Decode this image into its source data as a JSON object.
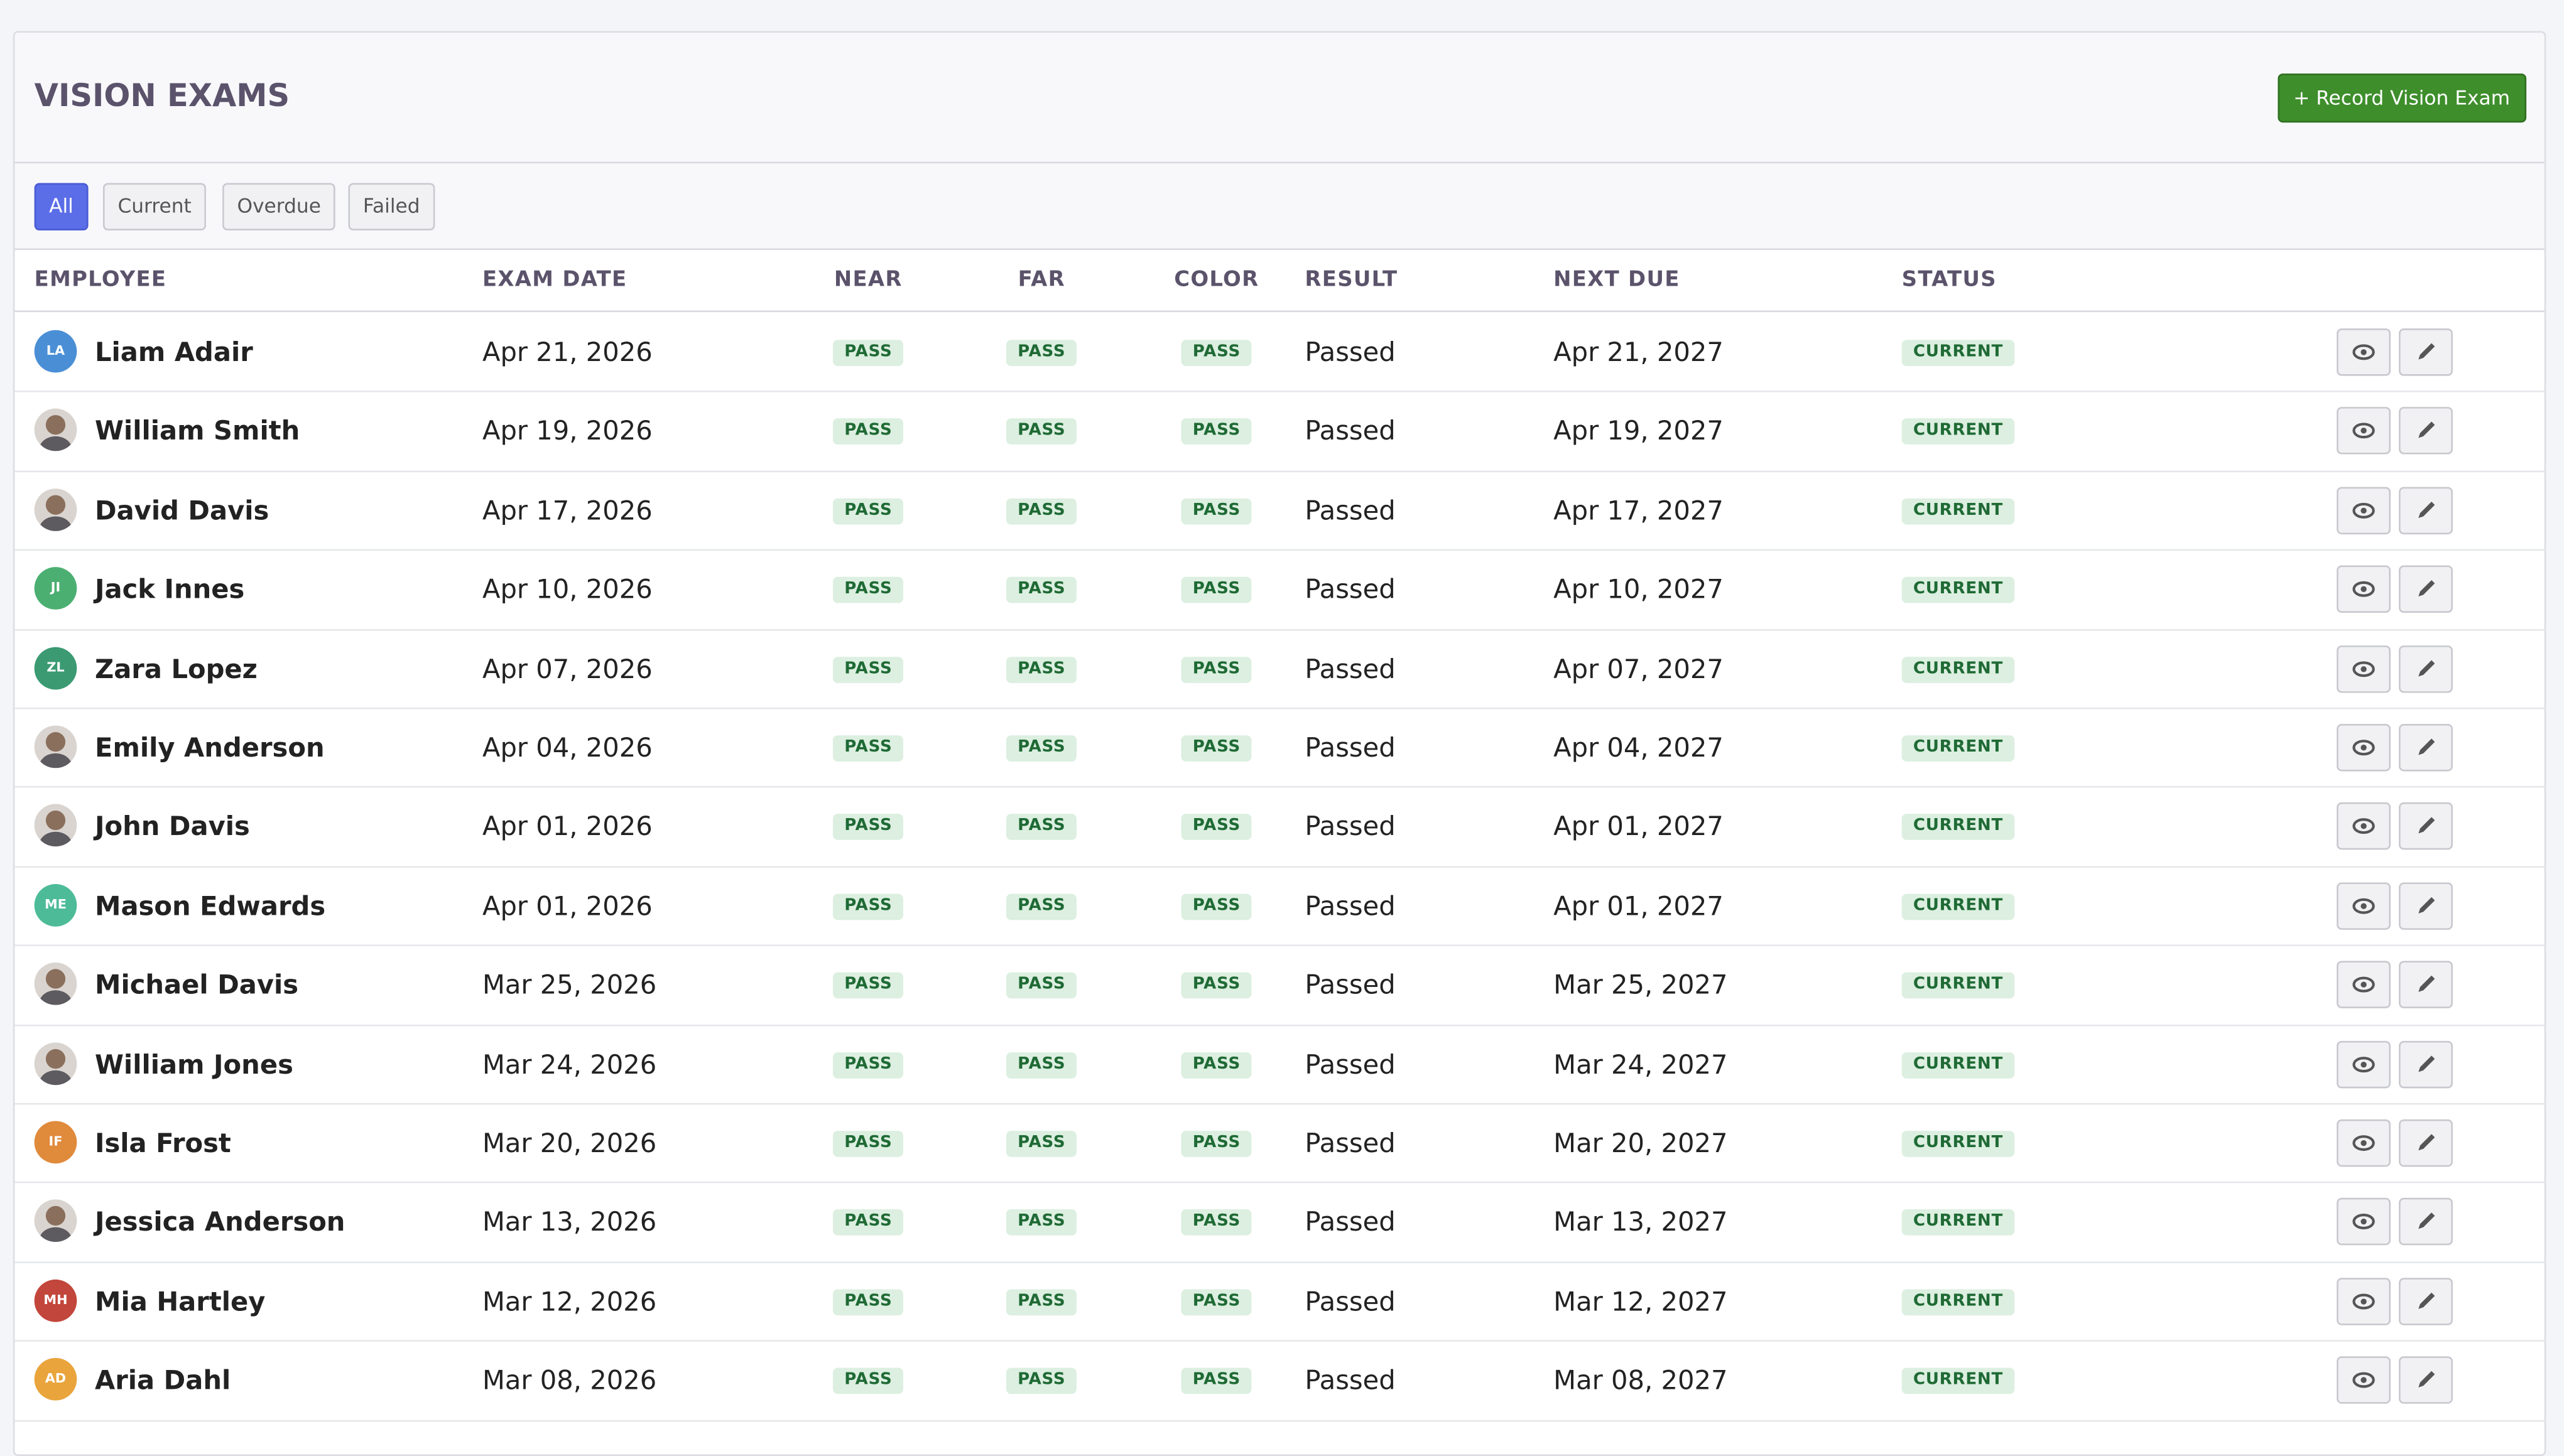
{
  "header": {
    "title": "VISION EXAMS",
    "button": "+ Record Vision Exam"
  },
  "filters": [
    {
      "label": "All",
      "active": true
    },
    {
      "label": "Current"
    },
    {
      "label": "Overdue"
    },
    {
      "label": "Failed"
    }
  ],
  "table": {
    "columns": [
      "EMPLOYEE",
      "EXAM DATE",
      "NEAR",
      "FAR",
      "COLOR",
      "RESULT",
      "NEXT DUE",
      "STATUS"
    ],
    "rows": [
      {
        "employee": "Liam Adair",
        "initials": "LA",
        "color": "#4a8fd6",
        "exam_date": "Apr 21, 2026",
        "near": "PASS",
        "far": "PASS",
        "color_test": "PASS",
        "result": "Passed",
        "next_due": "Apr 21, 2027",
        "status": "CURRENT"
      },
      {
        "employee": "William Smith",
        "exam_date": "Apr 19, 2026",
        "near": "PASS",
        "far": "PASS",
        "color_test": "PASS",
        "result": "Passed",
        "next_due": "Apr 19, 2027",
        "status": "CURRENT"
      },
      {
        "employee": "David Davis",
        "exam_date": "Apr 17, 2026",
        "near": "PASS",
        "far": "PASS",
        "color_test": "PASS",
        "result": "Passed",
        "next_due": "Apr 17, 2027",
        "status": "CURRENT"
      },
      {
        "employee": "Jack Innes",
        "initials": "JI",
        "color": "#4caf72",
        "exam_date": "Apr 10, 2026",
        "near": "PASS",
        "far": "PASS",
        "color_test": "PASS",
        "result": "Passed",
        "next_due": "Apr 10, 2027",
        "status": "CURRENT"
      },
      {
        "employee": "Zara Lopez",
        "initials": "ZL",
        "color": "#3b9a72",
        "exam_date": "Apr 07, 2026",
        "near": "PASS",
        "far": "PASS",
        "color_test": "PASS",
        "result": "Passed",
        "next_due": "Apr 07, 2027",
        "status": "CURRENT"
      },
      {
        "employee": "Emily Anderson",
        "exam_date": "Apr 04, 2026",
        "near": "PASS",
        "far": "PASS",
        "color_test": "PASS",
        "result": "Passed",
        "next_due": "Apr 04, 2027",
        "status": "CURRENT"
      },
      {
        "employee": "John Davis",
        "exam_date": "Apr 01, 2026",
        "near": "PASS",
        "far": "PASS",
        "color_test": "PASS",
        "result": "Passed",
        "next_due": "Apr 01, 2027",
        "status": "CURRENT"
      },
      {
        "employee": "Mason Edwards",
        "initials": "ME",
        "color": "#4dbb98",
        "exam_date": "Apr 01, 2026",
        "near": "PASS",
        "far": "PASS",
        "color_test": "PASS",
        "result": "Passed",
        "next_due": "Apr 01, 2027",
        "status": "CURRENT"
      },
      {
        "employee": "Michael Davis",
        "exam_date": "Mar 25, 2026",
        "near": "PASS",
        "far": "PASS",
        "color_test": "PASS",
        "result": "Passed",
        "next_due": "Mar 25, 2027",
        "status": "CURRENT"
      },
      {
        "employee": "William Jones",
        "exam_date": "Mar 24, 2026",
        "near": "PASS",
        "far": "PASS",
        "color_test": "PASS",
        "result": "Passed",
        "next_due": "Mar 24, 2027",
        "status": "CURRENT"
      },
      {
        "employee": "Isla Frost",
        "initials": "IF",
        "color": "#e08a3c",
        "exam_date": "Mar 20, 2026",
        "near": "PASS",
        "far": "PASS",
        "color_test": "PASS",
        "result": "Passed",
        "next_due": "Mar 20, 2027",
        "status": "CURRENT"
      },
      {
        "employee": "Jessica Anderson",
        "exam_date": "Mar 13, 2026",
        "near": "PASS",
        "far": "PASS",
        "color_test": "PASS",
        "result": "Passed",
        "next_due": "Mar 13, 2027",
        "status": "CURRENT"
      },
      {
        "employee": "Mia Hartley",
        "initials": "MH",
        "color": "#c2463b",
        "exam_date": "Mar 12, 2026",
        "near": "PASS",
        "far": "PASS",
        "color_test": "PASS",
        "result": "Passed",
        "next_due": "Mar 12, 2027",
        "status": "CURRENT"
      },
      {
        "employee": "Aria Dahl",
        "initials": "AD",
        "color": "#e9a43c",
        "exam_date": "Mar 08, 2026",
        "near": "PASS",
        "far": "PASS",
        "color_test": "PASS",
        "result": "Passed",
        "next_due": "Mar 08, 2027",
        "status": "CURRENT"
      }
    ]
  }
}
